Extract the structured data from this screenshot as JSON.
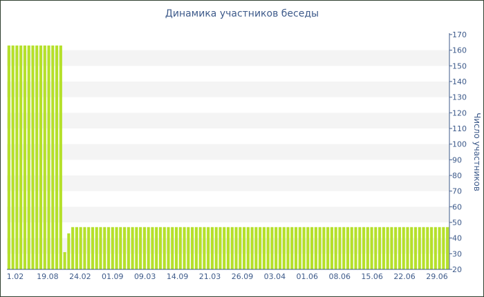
{
  "chart_data": {
    "type": "bar",
    "title": "Динамика участников беседы",
    "xlabel": "",
    "ylabel": "Число участников",
    "ylim": [
      20,
      170
    ],
    "yticks": [
      20,
      30,
      40,
      50,
      60,
      70,
      80,
      90,
      100,
      110,
      120,
      130,
      140,
      150,
      160,
      170
    ],
    "x_tick_labels": [
      "1.02",
      "19.08",
      "24.02",
      "01.09",
      "09.03",
      "14.09",
      "21.03",
      "26.09",
      "03.04",
      "01.06",
      "08.06",
      "15.06",
      "22.06",
      "29.06"
    ],
    "y_axis_position": "right",
    "bar_color": "#b5e02b",
    "values": [
      163,
      163,
      163,
      163,
      163,
      163,
      163,
      163,
      163,
      163,
      163,
      163,
      163,
      163,
      31,
      43,
      47,
      47,
      47,
      47,
      47,
      47,
      47,
      47,
      47,
      47,
      47,
      47,
      47,
      47,
      47,
      47,
      47,
      47,
      47,
      47,
      47,
      47,
      47,
      47,
      47,
      47,
      47,
      47,
      47,
      47,
      47,
      47,
      47,
      47,
      47,
      47,
      47,
      47,
      47,
      47,
      47,
      47,
      47,
      47,
      47,
      47,
      47,
      47,
      47,
      47,
      47,
      47,
      47,
      47,
      47,
      47,
      47,
      47,
      47,
      47,
      47,
      47,
      47,
      47,
      47,
      47,
      47,
      47,
      47,
      47,
      47,
      47,
      47,
      47,
      47,
      47,
      47,
      47,
      47,
      47,
      47,
      47,
      47,
      47,
      47,
      47,
      47,
      47,
      47,
      47,
      47,
      47,
      47,
      47,
      47
    ]
  }
}
